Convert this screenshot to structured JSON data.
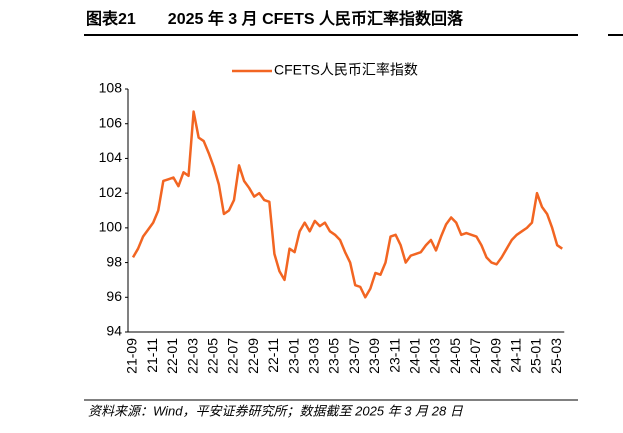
{
  "chart_data": {
    "type": "line",
    "title": "图表21　　2025 年 3 月 CFETS 人民币汇率指数回落",
    "source": "资料来源：Wind，平安证券研究所；数据截至 2025 年 3 月 28 日",
    "categories": [
      "21-09",
      null,
      null,
      null,
      "21-11",
      null,
      null,
      null,
      "22-01",
      null,
      null,
      null,
      "22-03",
      null,
      null,
      null,
      "22-05",
      null,
      null,
      null,
      "22-07",
      null,
      null,
      null,
      "22-09",
      null,
      null,
      null,
      "22-11",
      null,
      null,
      null,
      "23-01",
      null,
      null,
      null,
      "23-03",
      null,
      null,
      null,
      "23-05",
      null,
      null,
      null,
      "23-07",
      null,
      null,
      null,
      "23-09",
      null,
      null,
      null,
      "23-11",
      null,
      null,
      null,
      "24-01",
      null,
      null,
      null,
      "24-03",
      null,
      null,
      null,
      "24-05",
      null,
      null,
      null,
      "24-07",
      null,
      null,
      null,
      "24-09",
      null,
      null,
      null,
      "24-11",
      null,
      null,
      null,
      "25-01",
      null,
      null,
      null,
      "25-03",
      null
    ],
    "series": [
      {
        "name": "CFETS人民币汇率指数",
        "color": "#f26522",
        "values": [
          98.3,
          98.8,
          99.5,
          99.9,
          100.3,
          101.0,
          102.7,
          102.8,
          102.9,
          102.4,
          103.2,
          103.0,
          106.7,
          105.2,
          105.0,
          104.3,
          103.5,
          102.5,
          100.8,
          101.0,
          101.6,
          103.6,
          102.7,
          102.3,
          101.8,
          102.0,
          101.6,
          101.5,
          98.5,
          97.5,
          97.0,
          98.8,
          98.6,
          99.8,
          100.3,
          99.8,
          100.4,
          100.1,
          100.3,
          99.8,
          99.6,
          99.3,
          98.6,
          98.0,
          96.7,
          96.6,
          96.0,
          96.5,
          97.4,
          97.3,
          98.0,
          99.5,
          99.6,
          99.0,
          98.0,
          98.4,
          98.5,
          98.6,
          99.0,
          99.3,
          98.7,
          99.5,
          100.2,
          100.6,
          100.3,
          99.6,
          99.7,
          99.6,
          99.5,
          99.0,
          98.3,
          98.0,
          97.9,
          98.3,
          98.8,
          99.3,
          99.6,
          99.8,
          100.0,
          100.3,
          102.0,
          101.2,
          100.8,
          100.0,
          99.0,
          98.8
        ]
      }
    ],
    "ylim": [
      94,
      108
    ],
    "yticks": [
      94,
      96,
      98,
      100,
      102,
      104,
      106,
      108
    ]
  }
}
